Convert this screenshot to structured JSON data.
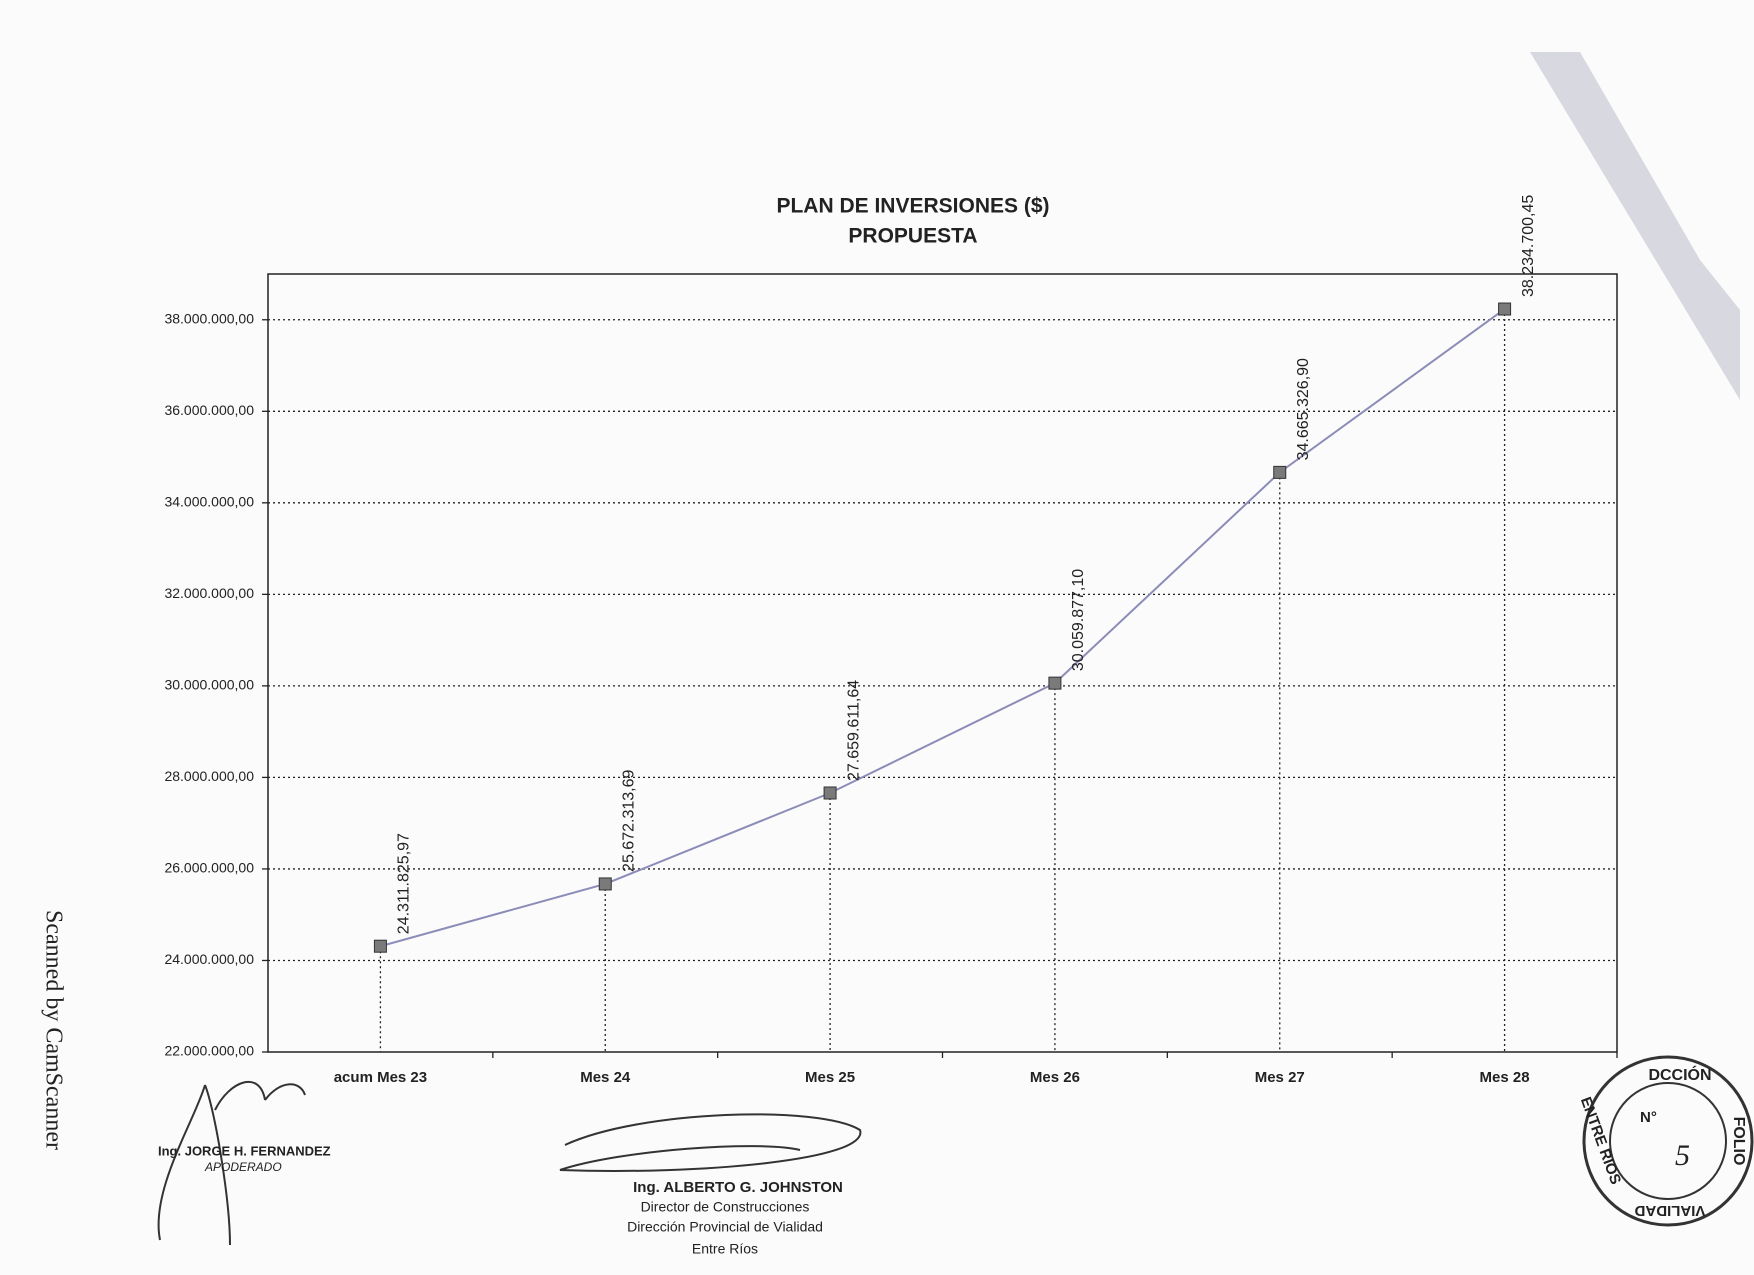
{
  "chart_data": {
    "type": "line",
    "title": "PLAN DE INVERSIONES ($)",
    "subtitle": "PROPUESTA",
    "categories": [
      "acum Mes 23",
      "Mes 24",
      "Mes 25",
      "Mes 26",
      "Mes 27",
      "Mes 28"
    ],
    "values": [
      24311825.97,
      25672313.69,
      27659611.64,
      30059877.1,
      34665326.9,
      38234700.45
    ],
    "value_labels": [
      "24.311.825,97",
      "25.672.313,69",
      "27.659.611,64",
      "30.059.877,10",
      "34.665.326,90",
      "38.234.700,45"
    ],
    "color": "#8c8cb8",
    "marker_color": "#7a7a7a",
    "ylim": [
      22000000,
      39000000
    ],
    "yticks": [
      {
        "value": 22000000,
        "label": "22.000.000,00"
      },
      {
        "value": 24000000,
        "label": "24.000.000,00"
      },
      {
        "value": 26000000,
        "label": "26.000.000,00"
      },
      {
        "value": 28000000,
        "label": "28.000.000,00"
      },
      {
        "value": 30000000,
        "label": "30.000.000,00"
      },
      {
        "value": 32000000,
        "label": "32.000.000,00"
      },
      {
        "value": 34000000,
        "label": "34.000.000,00"
      },
      {
        "value": 36000000,
        "label": "36.000.000,00"
      },
      {
        "value": 38000000,
        "label": "38.000.000,00"
      }
    ],
    "grid": true
  },
  "signatures": {
    "left": {
      "name": "Ing. JORGE H. FERNANDEZ",
      "role": "APODERADO"
    },
    "right": {
      "name": "Ing. ALBERTO G. JOHNSTON",
      "lines": [
        "Director de Construcciones",
        "Dirección Provincial de Vialidad",
        "Entre Ríos"
      ]
    }
  },
  "stamp": {
    "top": "DCCIÓN",
    "right": "FOLIO",
    "left": "ENTRE RIOS",
    "bottom": "VIALIDAD",
    "number_label": "N°",
    "number": "5"
  },
  "watermark": "Scanned by CamScanner"
}
